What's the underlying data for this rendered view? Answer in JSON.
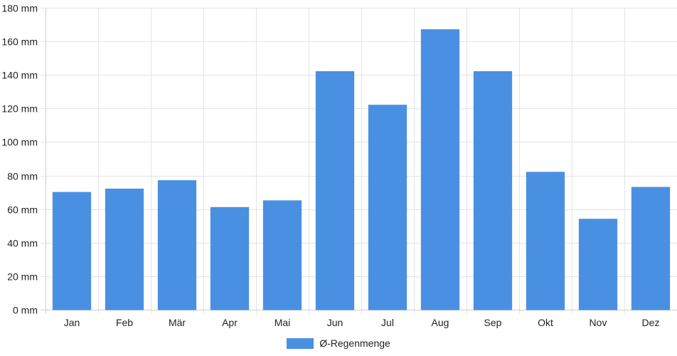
{
  "chart_data": {
    "type": "bar",
    "categories": [
      "Jan",
      "Feb",
      "Mär",
      "Apr",
      "Mai",
      "Jun",
      "Jul",
      "Aug",
      "Sep",
      "Okt",
      "Nov",
      "Dez"
    ],
    "series": [
      {
        "name": "Ø-Regenmenge",
        "values": [
          70,
          72,
          77,
          61,
          65,
          142,
          122,
          167,
          142,
          82,
          54,
          73
        ],
        "color": "#4a90e2"
      }
    ],
    "y_ticks": [
      "0 mm",
      "20 mm",
      "40 mm",
      "60 mm",
      "80 mm",
      "100 mm",
      "120 mm",
      "140 mm",
      "160 mm",
      "180 mm"
    ],
    "ylim": [
      0,
      180
    ],
    "unit": "mm",
    "grid": true,
    "legend_position": "bottom-center"
  }
}
